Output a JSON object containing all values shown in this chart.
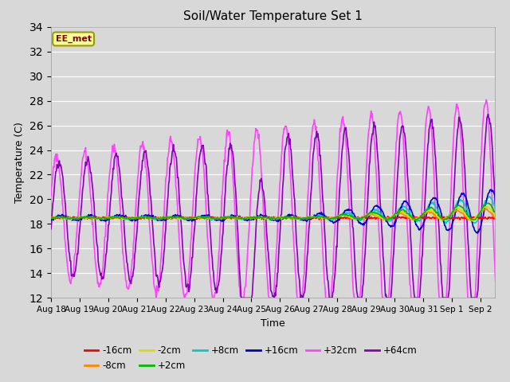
{
  "title": "Soil/Water Temperature Set 1",
  "xlabel": "Time",
  "ylabel": "Temperature (C)",
  "ylim": [
    12,
    34
  ],
  "yticks": [
    12,
    14,
    16,
    18,
    20,
    22,
    24,
    26,
    28,
    30,
    32,
    34
  ],
  "background_color": "#d8d8d8",
  "plot_bg_color": "#d8d8d8",
  "annotation_text": "EE_met",
  "annotation_bg": "#ffff99",
  "annotation_border": "#999900",
  "annotation_text_color": "#880000",
  "series": {
    "-16cm": {
      "color": "#ff0000",
      "linewidth": 1.2
    },
    "-8cm": {
      "color": "#ff8800",
      "linewidth": 1.2
    },
    "-2cm": {
      "color": "#dddd00",
      "linewidth": 1.2
    },
    "+2cm": {
      "color": "#00bb00",
      "linewidth": 1.2
    },
    "+8cm": {
      "color": "#00cccc",
      "linewidth": 1.2
    },
    "+16cm": {
      "color": "#0000cc",
      "linewidth": 1.2
    },
    "+32cm": {
      "color": "#ff44ff",
      "linewidth": 1.2
    },
    "+64cm": {
      "color": "#8800bb",
      "linewidth": 1.2
    }
  },
  "x_tick_labels": [
    "Aug 18",
    "Aug 19",
    "Aug 20",
    "Aug 21",
    "Aug 22",
    "Aug 23",
    "Aug 24",
    "Aug 25",
    "Aug 26",
    "Aug 27",
    "Aug 28",
    "Aug 29",
    "Aug 30",
    "Aug 31",
    "Sep 1",
    "Sep 2"
  ],
  "x_tick_positions": [
    0,
    1,
    2,
    3,
    4,
    5,
    6,
    7,
    8,
    9,
    10,
    11,
    12,
    13,
    14,
    15
  ]
}
